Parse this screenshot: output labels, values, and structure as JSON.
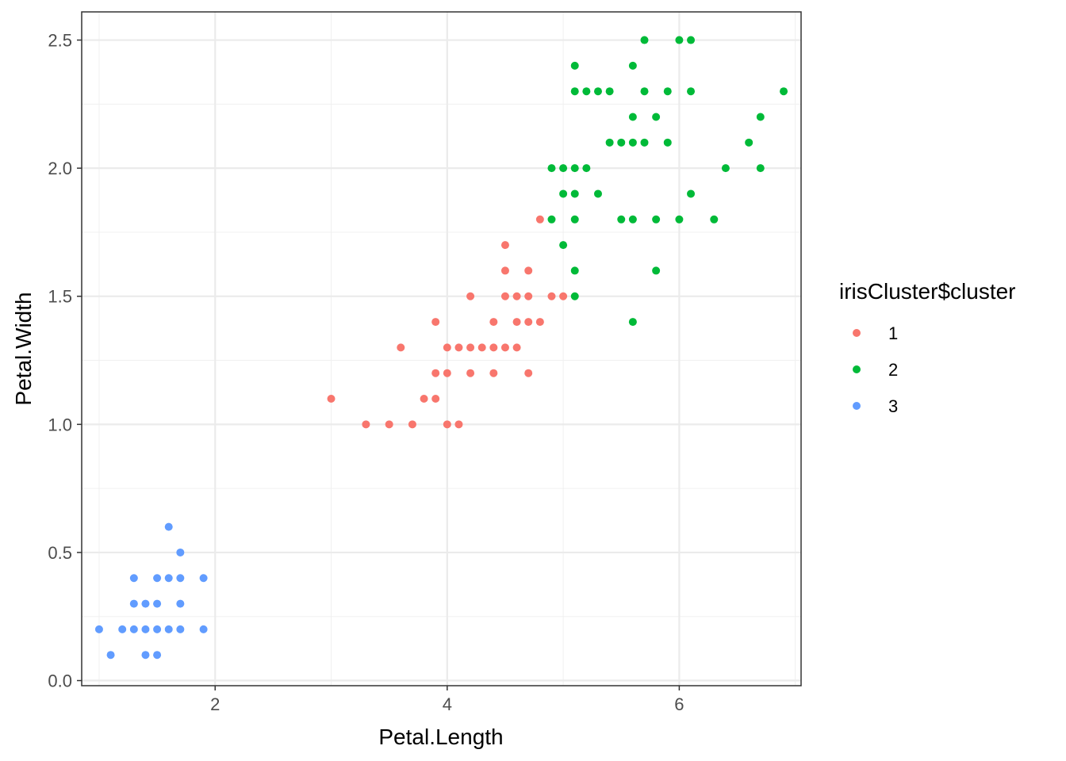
{
  "chart_data": {
    "type": "scatter",
    "title": "",
    "xlabel": "Petal.Length",
    "ylabel": "Petal.Width",
    "xlim": [
      0.85,
      7.05
    ],
    "ylim": [
      -0.02,
      2.61
    ],
    "x_ticks": [
      2,
      4,
      6
    ],
    "x_tick_labels": [
      "2",
      "4",
      "6"
    ],
    "y_ticks": [
      0,
      0.5,
      1,
      1.5,
      2,
      2.5
    ],
    "y_tick_labels": [
      "0.0",
      "0.5",
      "1.0",
      "1.5",
      "2.0",
      "2.5"
    ],
    "x_minor_ticks": [
      1,
      3,
      5,
      7
    ],
    "y_minor_ticks": [
      0.25,
      0.75,
      1.25,
      1.75,
      2.25
    ],
    "grid": true,
    "legend": {
      "title": "irisCluster$cluster",
      "position": "right",
      "entries": [
        "1",
        "2",
        "3"
      ]
    },
    "series": [
      {
        "name": "1",
        "color": "#F8766D",
        "points": [
          [
            3.0,
            1.1
          ],
          [
            3.3,
            1.0
          ],
          [
            3.5,
            1.0
          ],
          [
            3.6,
            1.3
          ],
          [
            3.7,
            1.0
          ],
          [
            3.8,
            1.1
          ],
          [
            3.9,
            1.1
          ],
          [
            3.9,
            1.2
          ],
          [
            3.9,
            1.4
          ],
          [
            4.0,
            1.0
          ],
          [
            4.0,
            1.2
          ],
          [
            4.0,
            1.3
          ],
          [
            4.1,
            1.0
          ],
          [
            4.1,
            1.3
          ],
          [
            4.2,
            1.2
          ],
          [
            4.2,
            1.3
          ],
          [
            4.2,
            1.5
          ],
          [
            4.3,
            1.3
          ],
          [
            4.4,
            1.2
          ],
          [
            4.4,
            1.3
          ],
          [
            4.4,
            1.4
          ],
          [
            4.5,
            1.3
          ],
          [
            4.5,
            1.5
          ],
          [
            4.5,
            1.6
          ],
          [
            4.5,
            1.7
          ],
          [
            4.6,
            1.3
          ],
          [
            4.6,
            1.4
          ],
          [
            4.6,
            1.5
          ],
          [
            4.7,
            1.2
          ],
          [
            4.7,
            1.4
          ],
          [
            4.7,
            1.5
          ],
          [
            4.7,
            1.6
          ],
          [
            4.8,
            1.4
          ],
          [
            4.8,
            1.8
          ],
          [
            4.9,
            1.5
          ],
          [
            5.0,
            1.5
          ]
        ]
      },
      {
        "name": "2",
        "color": "#00BA38",
        "points": [
          [
            4.9,
            1.8
          ],
          [
            4.9,
            2.0
          ],
          [
            5.0,
            1.7
          ],
          [
            5.0,
            1.9
          ],
          [
            5.0,
            2.0
          ],
          [
            5.1,
            1.5
          ],
          [
            5.1,
            1.6
          ],
          [
            5.1,
            1.8
          ],
          [
            5.1,
            1.9
          ],
          [
            5.1,
            2.0
          ],
          [
            5.1,
            2.3
          ],
          [
            5.1,
            2.4
          ],
          [
            5.2,
            2.0
          ],
          [
            5.2,
            2.3
          ],
          [
            5.3,
            1.9
          ],
          [
            5.3,
            2.3
          ],
          [
            5.4,
            2.1
          ],
          [
            5.4,
            2.3
          ],
          [
            5.5,
            1.8
          ],
          [
            5.5,
            2.1
          ],
          [
            5.6,
            1.4
          ],
          [
            5.6,
            1.8
          ],
          [
            5.6,
            2.1
          ],
          [
            5.6,
            2.2
          ],
          [
            5.6,
            2.4
          ],
          [
            5.7,
            2.1
          ],
          [
            5.7,
            2.3
          ],
          [
            5.7,
            2.5
          ],
          [
            5.8,
            1.6
          ],
          [
            5.8,
            1.8
          ],
          [
            5.8,
            2.2
          ],
          [
            5.9,
            2.1
          ],
          [
            5.9,
            2.3
          ],
          [
            6.0,
            1.8
          ],
          [
            6.0,
            2.5
          ],
          [
            6.1,
            1.9
          ],
          [
            6.1,
            2.3
          ],
          [
            6.1,
            2.5
          ],
          [
            6.3,
            1.8
          ],
          [
            6.4,
            2.0
          ],
          [
            6.6,
            2.1
          ],
          [
            6.7,
            2.0
          ],
          [
            6.7,
            2.2
          ],
          [
            6.9,
            2.3
          ]
        ]
      },
      {
        "name": "3",
        "color": "#619CFF",
        "points": [
          [
            1.0,
            0.2
          ],
          [
            1.1,
            0.1
          ],
          [
            1.2,
            0.2
          ],
          [
            1.3,
            0.2
          ],
          [
            1.3,
            0.3
          ],
          [
            1.3,
            0.4
          ],
          [
            1.4,
            0.1
          ],
          [
            1.4,
            0.2
          ],
          [
            1.4,
            0.3
          ],
          [
            1.5,
            0.1
          ],
          [
            1.5,
            0.2
          ],
          [
            1.5,
            0.3
          ],
          [
            1.5,
            0.4
          ],
          [
            1.6,
            0.2
          ],
          [
            1.6,
            0.4
          ],
          [
            1.6,
            0.6
          ],
          [
            1.7,
            0.2
          ],
          [
            1.7,
            0.3
          ],
          [
            1.7,
            0.4
          ],
          [
            1.7,
            0.5
          ],
          [
            1.9,
            0.2
          ],
          [
            1.9,
            0.4
          ]
        ]
      }
    ]
  }
}
